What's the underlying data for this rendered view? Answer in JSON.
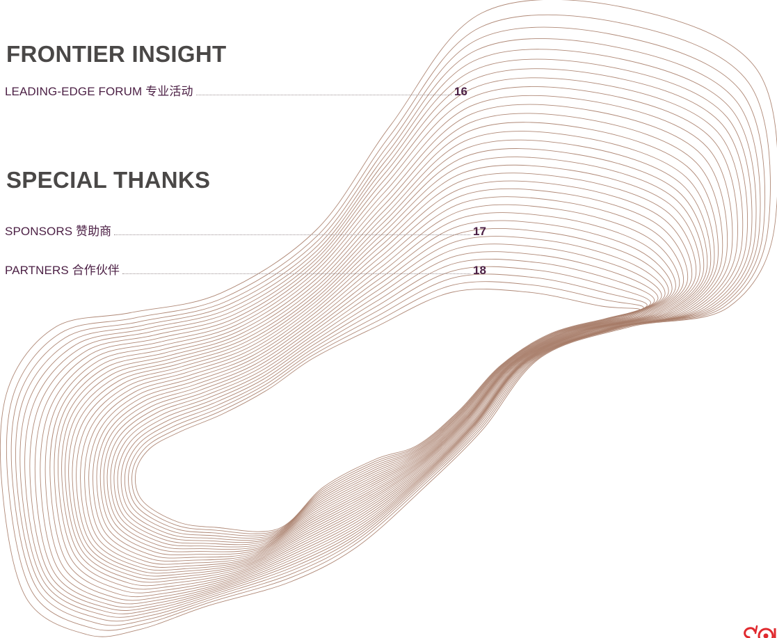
{
  "sections": [
    {
      "title": "FRONTIER INSIGHT",
      "entries": [
        {
          "label": "LEADING-EDGE FORUM 专业活动",
          "page": "16"
        }
      ]
    },
    {
      "title": "SPECIAL THANKS",
      "entries": [
        {
          "label": "SPONSORS 赞助商",
          "page": "17"
        },
        {
          "label": "PARTNERS 合作伙伴",
          "page": "18"
        }
      ]
    }
  ],
  "colors": {
    "section_title": "#4a4847",
    "entry_text": "#4b1f44",
    "leader": "#9b8f91",
    "ribbon_line": "#a67b67",
    "logo": "#e0292e"
  },
  "decorations": {
    "background_art": "wave-ribbon",
    "corner_logo": "brand-logo-partial"
  }
}
